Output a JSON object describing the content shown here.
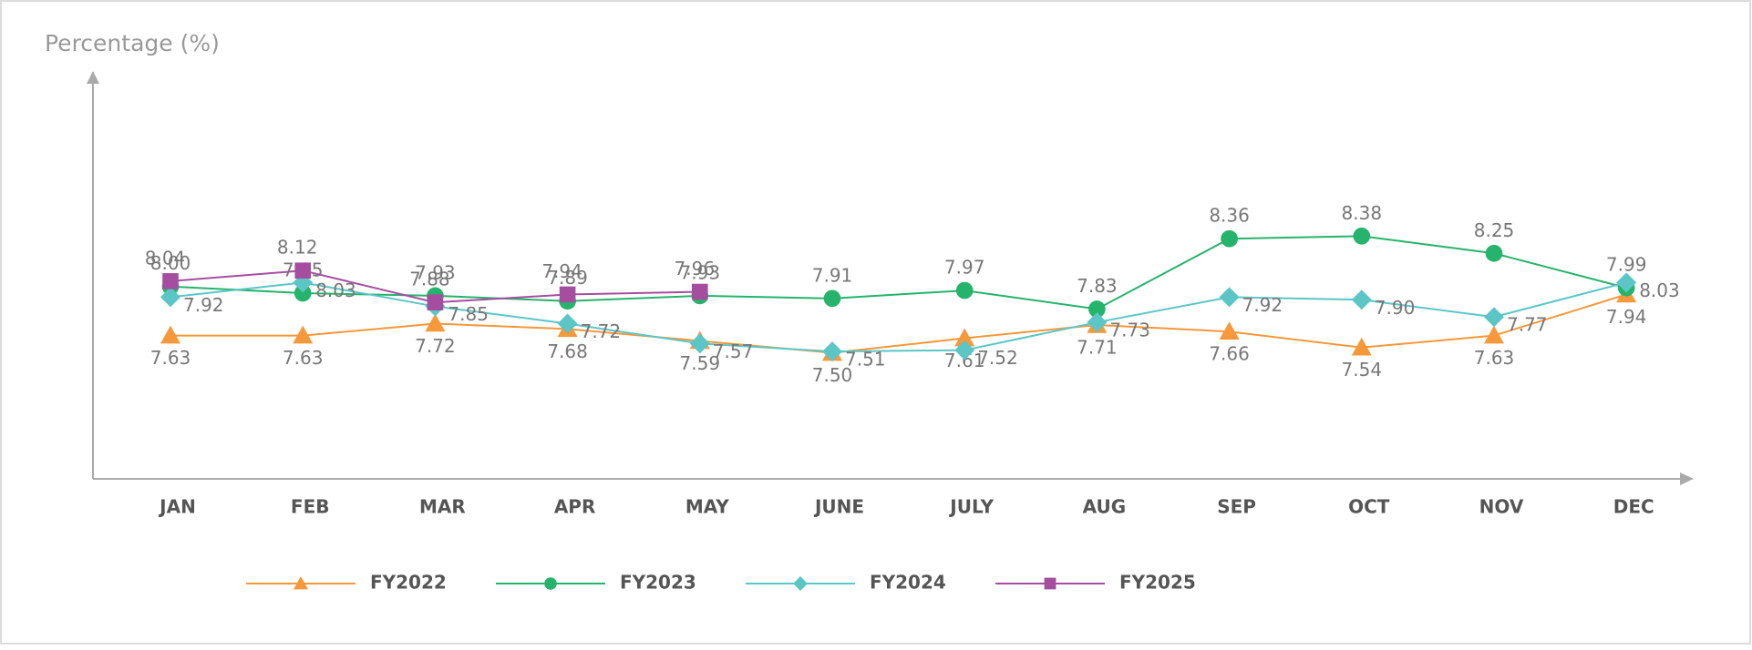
{
  "chart_data": {
    "type": "line",
    "y_axis_label": "Percentage (%)",
    "categories": [
      "JAN",
      "FEB",
      "MAR",
      "APR",
      "MAY",
      "JUNE",
      "JULY",
      "AUG",
      "SEP",
      "OCT",
      "NOV",
      "DEC"
    ],
    "ylim": [
      6.55,
      9.59
    ],
    "series": [
      {
        "name": "FY2022",
        "color": "#f7983a",
        "marker": "triangle",
        "values": [
          7.63,
          7.63,
          7.72,
          7.68,
          7.59,
          7.5,
          7.61,
          7.71,
          7.66,
          7.54,
          7.63,
          7.94
        ],
        "value_labels": [
          "7.63",
          "7.63",
          "7.72",
          "7.68",
          "7.59",
          "7.50",
          "7.61",
          "7.71",
          "7.66",
          "7.54",
          "7.63",
          "7.94"
        ]
      },
      {
        "name": "FY2023",
        "color": "#26b36b",
        "marker": "circle",
        "values": [
          8.0,
          7.95,
          7.93,
          7.89,
          7.93,
          7.91,
          7.97,
          7.83,
          8.36,
          8.38,
          8.25,
          7.99
        ],
        "value_labels": [
          "8.00",
          "7.95",
          "7.93",
          "7.89",
          "7.93",
          "7.91",
          "7.97",
          "7.83",
          "8.36",
          "8.38",
          "8.25",
          "7.99"
        ]
      },
      {
        "name": "FY2024",
        "color": "#5cc6c6",
        "marker": "diamond",
        "values": [
          7.92,
          8.03,
          7.85,
          7.72,
          7.57,
          7.51,
          7.52,
          7.73,
          7.92,
          7.9,
          7.77,
          8.03
        ],
        "value_labels": [
          "7.92",
          "8.03",
          "7.85",
          "7.72",
          "7.57",
          "7.51",
          "7.52",
          "7.73",
          "7.92",
          "7.90",
          "7.77",
          "8.03"
        ]
      },
      {
        "name": "FY2025",
        "color": "#a54ea0",
        "marker": "square",
        "values": [
          8.04,
          8.12,
          7.88,
          7.94,
          7.96,
          null,
          null,
          null,
          null,
          null,
          null,
          null
        ],
        "value_labels": [
          "8.04",
          "8.12",
          "7.88",
          "7.94",
          "7.96",
          null,
          null,
          null,
          null,
          null,
          null,
          null
        ]
      }
    ]
  }
}
